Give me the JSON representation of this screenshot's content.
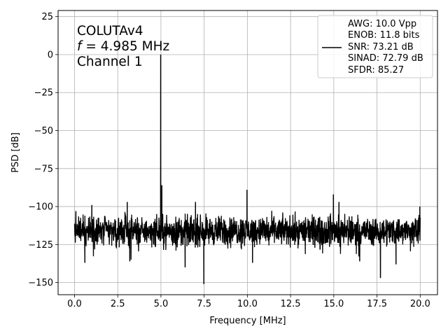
{
  "chart_data": {
    "type": "line",
    "xlabel": "Frequency [MHz]",
    "ylabel": "PSD [dB]",
    "xlim": [
      -0.95,
      21.0
    ],
    "ylim": [
      -158,
      29
    ],
    "xticks": [
      0.0,
      2.5,
      5.0,
      7.5,
      10.0,
      12.5,
      15.0,
      17.5,
      20.0
    ],
    "xtick_labels": [
      "0.0",
      "2.5",
      "5.0",
      "7.5",
      "10.0",
      "12.5",
      "15.0",
      "17.5",
      "20.0"
    ],
    "yticks": [
      25,
      0,
      -25,
      -50,
      -75,
      -100,
      -125,
      -150
    ],
    "ytick_labels": [
      "25",
      "0",
      "−25",
      "−50",
      "−75",
      "−100",
      "−125",
      "−150"
    ],
    "grid": true,
    "annotation": {
      "line1": "COLUTAv4",
      "line2_var": "f",
      "line2_rest": " = 4.985 MHz",
      "line3": "Channel 1"
    },
    "legend": {
      "placement": "top-right",
      "lines": [
        "AWG: 10.0 Vpp",
        "ENOB: 11.8 bits",
        "SNR: 73.21 dB",
        "SINAD: 72.79 dB",
        "SFDR: 85.27"
      ]
    },
    "series": [
      {
        "color": "#000000",
        "noise_floor": {
          "x_range": [
            0.0,
            20.0
          ],
          "mean": -114,
          "typical_range": [
            -130,
            -102
          ]
        },
        "peaks": [
          {
            "x": 4.985,
            "y": 0
          },
          {
            "x": 5.05,
            "y": -86
          },
          {
            "x": 0.08,
            "y": -103
          },
          {
            "x": 1.0,
            "y": -99
          },
          {
            "x": 3.05,
            "y": -97
          },
          {
            "x": 7.0,
            "y": -97
          },
          {
            "x": 9.98,
            "y": -89
          },
          {
            "x": 14.98,
            "y": -92
          },
          {
            "x": 15.3,
            "y": -97
          },
          {
            "x": 19.98,
            "y": -100
          }
        ],
        "dips": [
          {
            "x": 7.48,
            "y": -151
          },
          {
            "x": 0.6,
            "y": -137
          },
          {
            "x": 3.2,
            "y": -136
          },
          {
            "x": 6.4,
            "y": -140
          },
          {
            "x": 10.3,
            "y": -137
          },
          {
            "x": 16.5,
            "y": -136
          },
          {
            "x": 17.7,
            "y": -147
          },
          {
            "x": 18.6,
            "y": -138
          }
        ]
      }
    ]
  }
}
